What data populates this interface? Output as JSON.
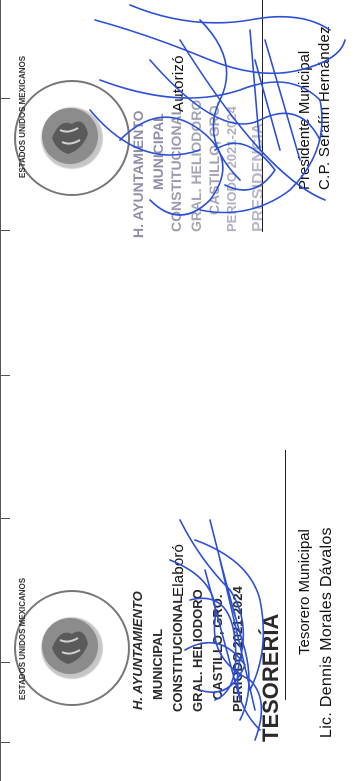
{
  "top": {
    "role_label": "Autorizó",
    "title": "Presidente  Municipal",
    "name": "C.P. Serafín Hernández",
    "stamp": {
      "lines": [
        "H. AYUNTAMIENTO",
        "MUNICIPAL",
        "CONSTITUCIONAL",
        "GRAL. HELIODORO",
        "CASTILLO, GRO.",
        "PERIODO 2021-2024"
      ],
      "footer": "PRESIDENCIA",
      "color": "#8f8fa8"
    },
    "seal_text": "ESTADOS UNIDOS MEXICANOS"
  },
  "bottom": {
    "role_label": "Elaboró",
    "title": "Tesorero  Municipal",
    "name": "Lic. Dennis  Morales  Dávalos",
    "stamp": {
      "lines": [
        "H. AYUNTAMIENTO",
        "MUNICIPAL",
        "CONSTITUCIONAL",
        "GRAL. HELIODORO",
        "CASTILLO, GRO.",
        "PERIODO 2021-2024"
      ],
      "footer": "TESORERÍA",
      "color": "#2a2a2a"
    },
    "seal_text": "ESTADOS UNIDOS MEXICANOS"
  },
  "colors": {
    "signature_ink": "#2b4fd6",
    "text": "#111111"
  }
}
